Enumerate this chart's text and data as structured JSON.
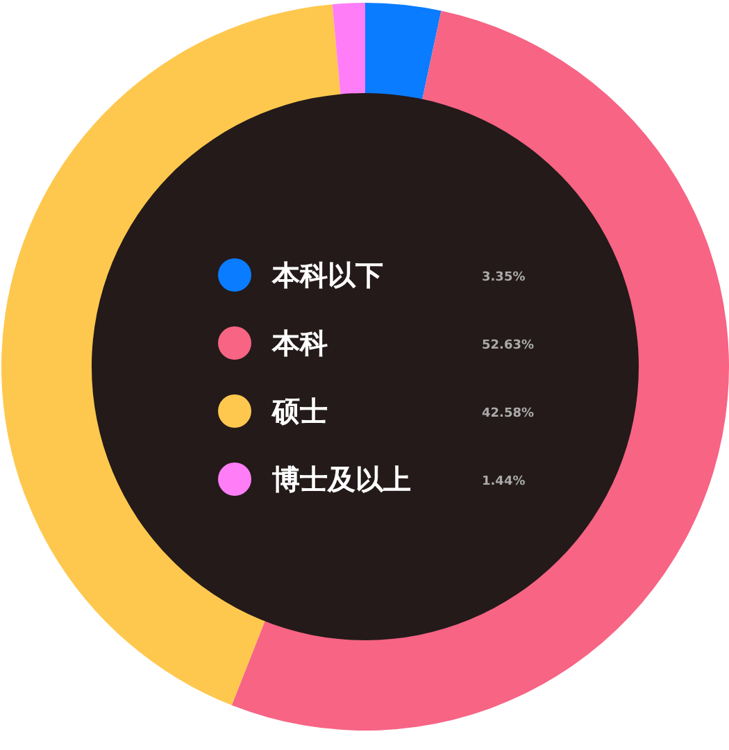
{
  "chart_data": {
    "type": "donut",
    "categories": [
      "本科以下",
      "本科",
      "硕士",
      "博士及以上"
    ],
    "values": [
      3.35,
      52.63,
      42.58,
      1.44
    ],
    "value_labels": [
      "3.35%",
      "52.63%",
      "42.58%",
      "1.44%"
    ],
    "colors": [
      "#0a7cff",
      "#f76484",
      "#fec84e",
      "#ff7ef7"
    ],
    "legend": "center"
  }
}
